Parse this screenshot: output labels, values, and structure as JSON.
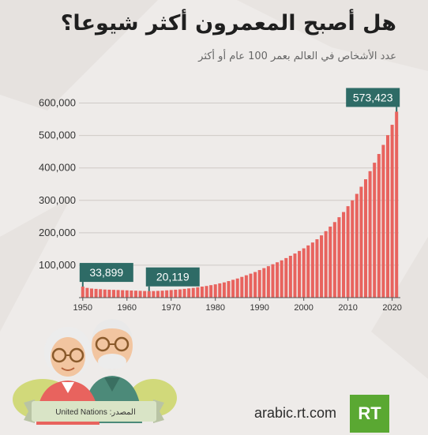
{
  "header": {
    "title": "هل أصبح المعمرون أكثر شيوعا؟",
    "subtitle": "عدد الأشخاص في العالم بعمر 100 عام أو أكثر"
  },
  "chart_data": {
    "type": "bar",
    "title": "هل أصبح المعمرون أكثر شيوعا؟",
    "subtitle": "عدد الأشخاص في العالم بعمر 100 عام أو أكثر",
    "xlabel": "",
    "ylabel": "",
    "ylim": [
      0,
      650000
    ],
    "yticks": [
      100000,
      200000,
      300000,
      400000,
      500000,
      600000
    ],
    "ytick_labels": [
      "100,000",
      "200,000",
      "300,000",
      "400,000",
      "500,000",
      "600,000"
    ],
    "xticks": [
      1950,
      1960,
      1970,
      1980,
      1990,
      2000,
      2010,
      2020
    ],
    "xtick_labels": [
      "1950",
      "1960",
      "1970",
      "1980",
      "1990",
      "2000",
      "2010",
      "2020"
    ],
    "grid": true,
    "bar_color": "#e8635e",
    "annotation_color": "#2e6b66",
    "x": [
      1950,
      1951,
      1952,
      1953,
      1954,
      1955,
      1956,
      1957,
      1958,
      1959,
      1960,
      1961,
      1962,
      1963,
      1964,
      1965,
      1966,
      1967,
      1968,
      1969,
      1970,
      1971,
      1972,
      1973,
      1974,
      1975,
      1976,
      1977,
      1978,
      1979,
      1980,
      1981,
      1982,
      1983,
      1984,
      1985,
      1986,
      1987,
      1988,
      1989,
      1990,
      1991,
      1992,
      1993,
      1994,
      1995,
      1996,
      1997,
      1998,
      1999,
      2000,
      2001,
      2002,
      2003,
      2004,
      2005,
      2006,
      2007,
      2008,
      2009,
      2010,
      2011,
      2012,
      2013,
      2014,
      2015,
      2016,
      2017,
      2018,
      2019,
      2020,
      2021
    ],
    "values": [
      33899,
      30000,
      28000,
      27000,
      26000,
      25000,
      24500,
      24000,
      23500,
      23000,
      22500,
      22000,
      21500,
      21000,
      20500,
      20119,
      20300,
      20800,
      21500,
      22500,
      23500,
      24500,
      25500,
      27000,
      28500,
      30000,
      32000,
      34000,
      36000,
      38500,
      41000,
      44000,
      47000,
      51000,
      55000,
      59000,
      64000,
      69000,
      74000,
      79000,
      85000,
      91000,
      97000,
      103000,
      109000,
      115000,
      122000,
      129000,
      136000,
      144000,
      152000,
      161000,
      170000,
      180000,
      192000,
      205000,
      219000,
      233000,
      248000,
      264000,
      282000,
      300000,
      320000,
      342000,
      365000,
      390000,
      416000,
      443000,
      471000,
      501000,
      533000,
      573423
    ],
    "annotations": [
      {
        "x": 1950,
        "value": 33899,
        "label": "33,899"
      },
      {
        "x": 1965,
        "value": 20119,
        "label": "20,119"
      },
      {
        "x": 2021,
        "value": 573423,
        "label": "573,423"
      }
    ]
  },
  "footer": {
    "source": "المصدر:  United Nations",
    "website": "arabic.rt.com",
    "logo_text": "RT"
  }
}
